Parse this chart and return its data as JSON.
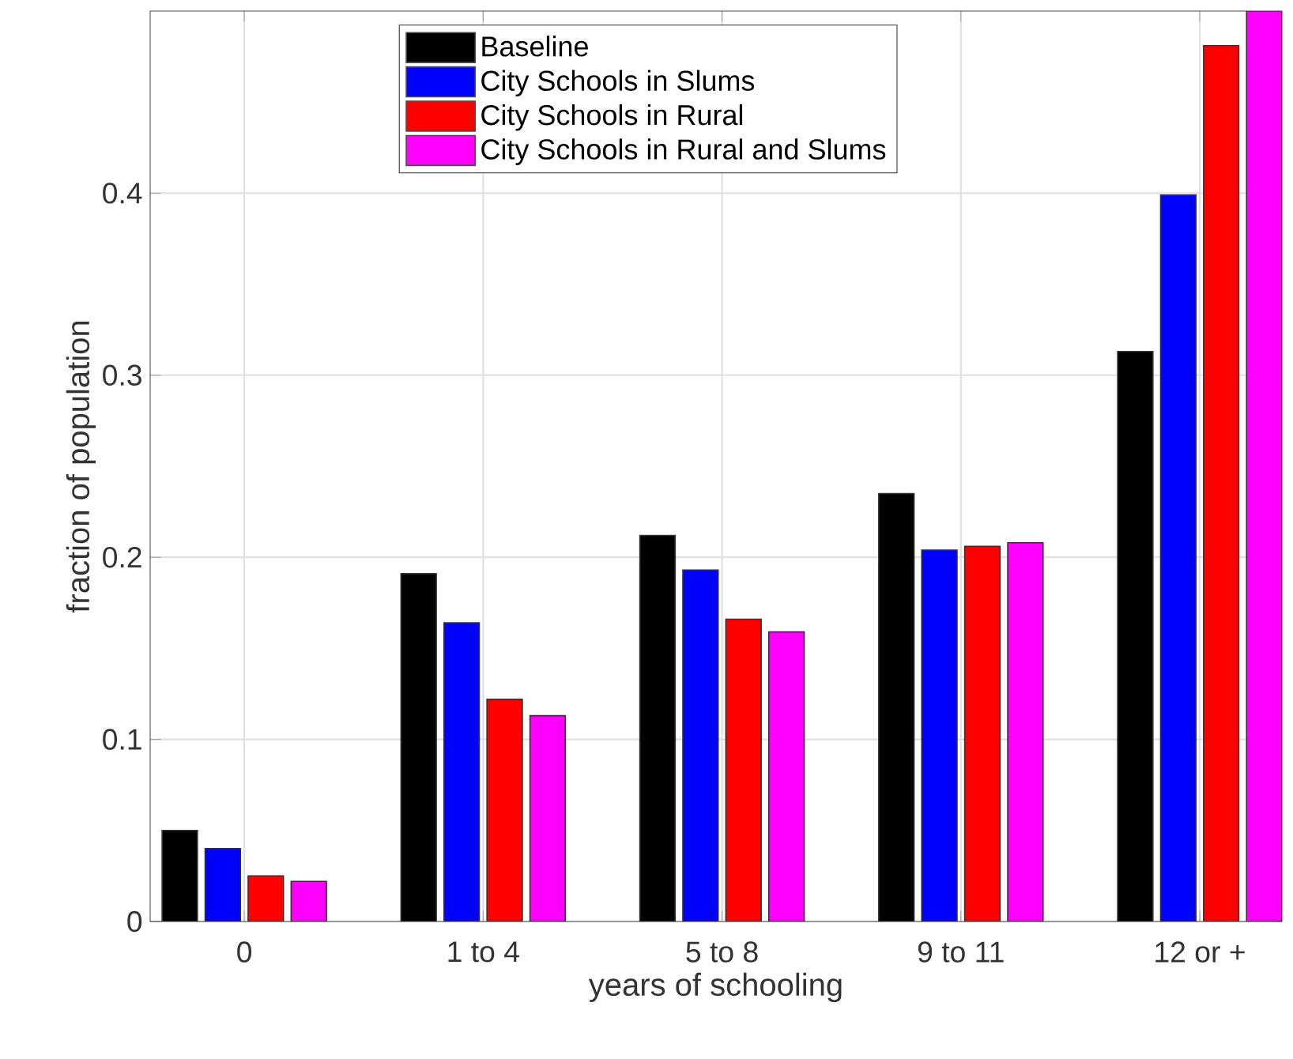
{
  "chart_data": {
    "type": "bar",
    "xlabel": "years of schooling",
    "ylabel": "fraction of population",
    "categories": [
      "0",
      "1 to 4",
      "5 to 8",
      "9 to 11",
      "12 or +"
    ],
    "series": [
      {
        "name": "Baseline",
        "color": "#000000",
        "values": [
          0.05,
          0.191,
          0.212,
          0.235,
          0.313
        ]
      },
      {
        "name": "City Schools in Slums",
        "color": "#0000ff",
        "values": [
          0.04,
          0.164,
          0.193,
          0.204,
          0.399
        ]
      },
      {
        "name": "City Schools in Rural",
        "color": "#ff0000",
        "values": [
          0.025,
          0.122,
          0.166,
          0.206,
          0.481
        ]
      },
      {
        "name": "City Schools in Rural and Slums",
        "color": "#ff00ff",
        "values": [
          0.022,
          0.113,
          0.159,
          0.208,
          0.5
        ]
      }
    ],
    "ylim": [
      0,
      0.5
    ],
    "yticks": [
      0,
      0.1,
      0.2,
      0.3,
      0.4
    ],
    "grid": true,
    "legend": "top"
  }
}
